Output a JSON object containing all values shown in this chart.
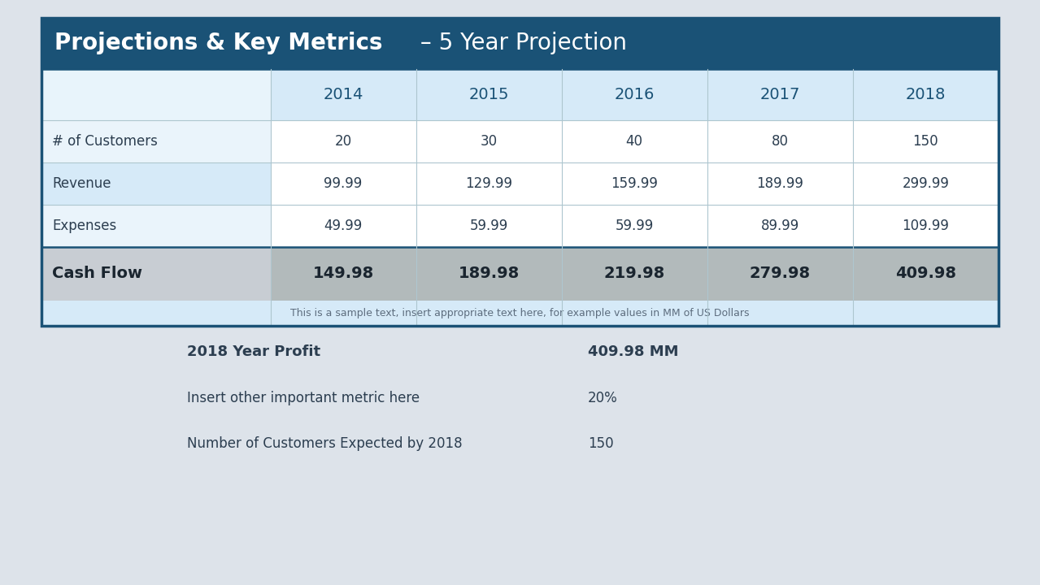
{
  "title_bold": "Projections & Key Metrics",
  "title_regular": " – 5 Year Projection",
  "years": [
    "2014",
    "2015",
    "2016",
    "2017",
    "2018"
  ],
  "row_labels": [
    "# of Customers",
    "Revenue",
    "Expenses",
    "Cash Flow"
  ],
  "table_data": [
    [
      "20",
      "30",
      "40",
      "80",
      "150"
    ],
    [
      "99.99",
      "129.99",
      "159.99",
      "189.99",
      "299.99"
    ],
    [
      "49.99",
      "59.99",
      "59.99",
      "89.99",
      "109.99"
    ],
    [
      "149.98",
      "189.98",
      "219.98",
      "279.98",
      "409.98"
    ]
  ],
  "footer_text": "This is a sample text, insert appropriate text here, for example values in MM of US Dollars",
  "summary_items": [
    {
      "label": "2018 Year Profit",
      "value": "409.98 MM",
      "bold": true
    },
    {
      "label": "Insert other important metric here",
      "value": "20%",
      "bold": false
    },
    {
      "label": "Number of Customers Expected by 2018",
      "value": "150",
      "bold": false
    }
  ],
  "bg_color": "#dde3ea",
  "header_bg": "#1a5276",
  "header_text_color": "#ffffff",
  "year_header_bg": "#d6eaf8",
  "year_label_bg": "#e8f4fb",
  "year_text_color": "#1a5276",
  "row_bg_1": "#eaf4fb",
  "row_bg_2": "#d6eaf8",
  "data_cell_bg": "#ffffff",
  "cashflow_label_bg": "#c8cdd3",
  "cashflow_data_bg": "#b2babb",
  "border_color": "#1a5276",
  "footer_bg": "#d6eaf8",
  "divider_color": "#aec6cf",
  "text_dark": "#2c3e50",
  "cashflow_text": "#1a252f",
  "footer_text_color": "#5d6d7e"
}
